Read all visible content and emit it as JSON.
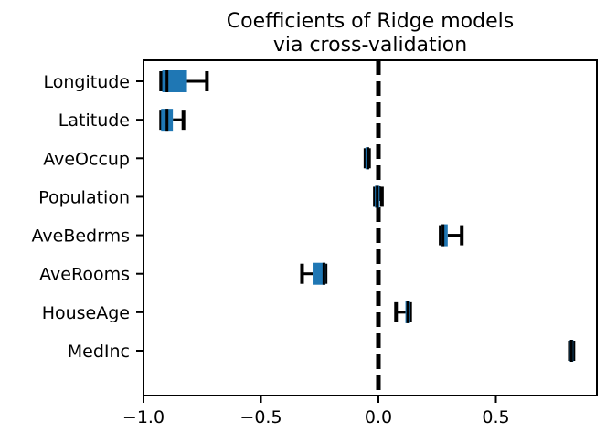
{
  "chart_data": {
    "type": "boxplot",
    "orientation": "horizontal",
    "title_lines": [
      "Coefficients of Ridge models",
      "via cross-validation"
    ],
    "xlabel": "",
    "ylabel": "",
    "xlim": [
      -1.0,
      0.93
    ],
    "xticks": [
      -1.0,
      -0.5,
      0.0,
      0.5
    ],
    "xtick_labels": [
      "−1.0",
      "−0.5",
      "0.0",
      "0.5"
    ],
    "reference_line": {
      "x": 0.0,
      "style": "dashed",
      "color": "#000000"
    },
    "box_color": "#1f77b4",
    "whisker_color": "#000000",
    "grid": false,
    "categories": [
      {
        "name": "MedInc",
        "whislo": 0.815,
        "q1": 0.815,
        "med": 0.822,
        "q3": 0.83,
        "whishi": 0.83
      },
      {
        "name": "HouseAge",
        "whislo": 0.075,
        "q1": 0.115,
        "med": 0.125,
        "q3": 0.135,
        "whishi": 0.135
      },
      {
        "name": "AveRooms",
        "whislo": -0.325,
        "q1": -0.28,
        "med": -0.232,
        "q3": -0.225,
        "whishi": -0.225
      },
      {
        "name": "AveBedrms",
        "whislo": 0.265,
        "q1": 0.265,
        "med": 0.275,
        "q3": 0.295,
        "whishi": 0.355
      },
      {
        "name": "Population",
        "whislo": -0.015,
        "q1": -0.015,
        "med": -0.005,
        "q3": 0.005,
        "whishi": 0.015
      },
      {
        "name": "AveOccup",
        "whislo": -0.055,
        "q1": -0.055,
        "med": -0.045,
        "q3": -0.04,
        "whishi": -0.04
      },
      {
        "name": "Latitude",
        "whislo": -0.925,
        "q1": -0.925,
        "med": -0.9,
        "q3": -0.875,
        "whishi": -0.83
      },
      {
        "name": "Longitude",
        "whislo": -0.925,
        "q1": -0.92,
        "med": -0.9,
        "q3": -0.815,
        "whishi": -0.73
      }
    ]
  }
}
